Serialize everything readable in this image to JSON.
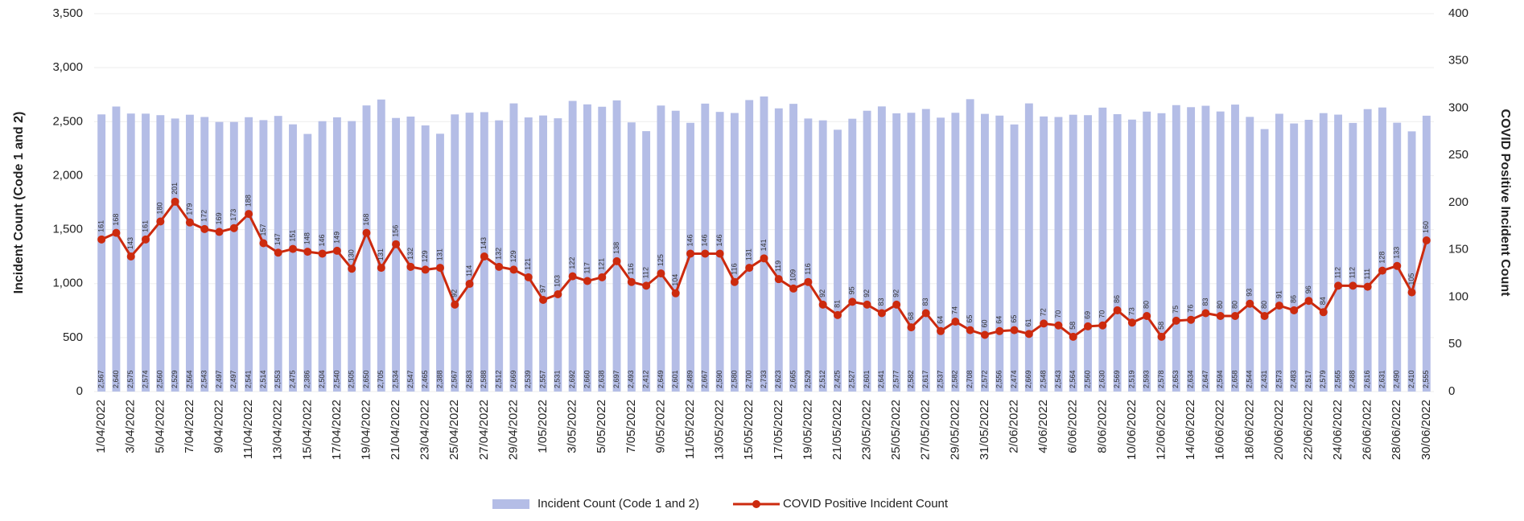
{
  "chart_data": {
    "type": "bar-line",
    "categories": [
      "1/04/2022",
      null,
      "3/04/2022",
      null,
      "5/04/2022",
      null,
      "7/04/2022",
      null,
      "9/04/2022",
      null,
      "11/04/2022",
      null,
      "13/04/2022",
      null,
      "15/04/2022",
      null,
      "17/04/2022",
      null,
      "19/04/2022",
      null,
      "21/04/2022",
      null,
      "23/04/2022",
      null,
      "25/04/2022",
      null,
      "27/04/2022",
      null,
      "29/04/2022",
      null,
      "1/05/2022",
      null,
      "3/05/2022",
      null,
      "5/05/2022",
      null,
      "7/05/2022",
      null,
      "9/05/2022",
      null,
      "11/05/2022",
      null,
      "13/05/2022",
      null,
      "15/05/2022",
      null,
      "17/05/2022",
      null,
      "19/05/2022",
      null,
      "21/05/2022",
      null,
      "23/05/2022",
      null,
      "25/05/2022",
      null,
      "27/05/2022",
      null,
      "29/05/2022",
      null,
      "31/05/2022",
      null,
      "2/06/2022",
      null,
      "4/06/2022",
      null,
      "6/06/2022",
      null,
      "8/06/2022",
      null,
      "10/06/2022",
      null,
      "12/06/2022",
      null,
      "14/06/2022",
      null,
      "16/06/2022",
      null,
      "18/06/2022",
      null,
      "20/06/2022",
      null,
      "22/06/2022",
      null,
      "24/06/2022",
      null,
      "26/06/2022",
      null,
      "28/06/2022",
      null,
      "30/06/2022"
    ],
    "series": [
      {
        "name": "Incident Count (Code 1 and 2)",
        "type": "bar",
        "color": "#b4bde6",
        "values": [
          2567,
          2640,
          2575,
          2574,
          2560,
          2529,
          2564,
          2543,
          2497,
          2497,
          2541,
          2514,
          2553,
          2475,
          2386,
          2504,
          2540,
          2505,
          2650,
          2705,
          2534,
          2547,
          2465,
          2388,
          2567,
          2583,
          2588,
          2512,
          2669,
          2539,
          2557,
          2531,
          2692,
          2660,
          2638,
          2697,
          2493,
          2412,
          2649,
          2601,
          2489,
          2667,
          2590,
          2580,
          2700,
          2733,
          2623,
          2665,
          2529,
          2512,
          2425,
          2527,
          2601,
          2641,
          2577,
          2582,
          2617,
          2537,
          2582,
          2708,
          2572,
          2556,
          2474,
          2669,
          2548,
          2543,
          2564,
          2560,
          2630,
          2569,
          2519,
          2593,
          2578,
          2653,
          2634,
          2647,
          2594,
          2658,
          2544,
          2431,
          2573,
          2483,
          2517,
          2579,
          2565,
          2488,
          2616,
          2631,
          2490,
          2410,
          2555
        ],
        "value_labels": [
          "2,567",
          "2,640",
          "2,575",
          "2,574",
          "2,560",
          "2,529",
          "2,564",
          "2,543",
          "2,497",
          "2,497",
          "2,541",
          "2,514",
          "2,553",
          "2,475",
          "2,386",
          "2,504",
          "2,540",
          "2,505",
          "2,650",
          "2,705",
          "2,534",
          "2,547",
          "2,465",
          "2,388",
          "2,567",
          "2,583",
          "2,588",
          "2,512",
          "2,669",
          "2,539",
          "2,557",
          "2,531",
          "2,692",
          "2,660",
          "2,638",
          "2,697",
          "2,493",
          "2,412",
          "2,649",
          "2,601",
          "2,489",
          "2,667",
          "2,590",
          "2,580",
          "2,700",
          "2,733",
          "2,623",
          "2,665",
          "2,529",
          "2,512",
          "2,425",
          "2,527",
          "2,601",
          "2,641",
          "2,577",
          "2,582",
          "2,617",
          "2,537",
          "2,582",
          "2,708",
          "2,572",
          "2,556",
          "2,474",
          "2,669",
          "2,548",
          "2,543",
          "2,564",
          "2,560",
          "2,630",
          "2,569",
          "2,519",
          "2,593",
          "2,578",
          "2,653",
          "2,634",
          "2,647",
          "2,594",
          "2,658",
          "2,544",
          "2,431",
          "2,573",
          "2,483",
          "2,517",
          "2,579",
          "2,565",
          "2,488",
          "2,616",
          "2,631",
          "2,490",
          "2,410",
          "2,555"
        ]
      },
      {
        "name": "COVID Positive Incident Count",
        "type": "line",
        "axis": "y2",
        "color": "#cc2a0e",
        "values": [
          161,
          168,
          143,
          161,
          180,
          201,
          179,
          172,
          169,
          173,
          188,
          157,
          147,
          151,
          148,
          146,
          149,
          130,
          168,
          131,
          156,
          132,
          129,
          131,
          92,
          114,
          143,
          132,
          129,
          121,
          97,
          103,
          122,
          117,
          121,
          138,
          116,
          112,
          125,
          104,
          146,
          146,
          146,
          116,
          131,
          141,
          119,
          109,
          116,
          92,
          81,
          95,
          92,
          83,
          92,
          68,
          83,
          64,
          74,
          65,
          60,
          64,
          65,
          61,
          72,
          70,
          58,
          69,
          70,
          86,
          73,
          80,
          58,
          75,
          76,
          83,
          80,
          80,
          93,
          80,
          91,
          86,
          96,
          84,
          112,
          112,
          111,
          128,
          133,
          105,
          160
        ]
      }
    ],
    "y_label": "Incident Count (Code 1 and 2)",
    "y2_label": "COVID Positive Incident Count",
    "ylim": [
      0,
      3500
    ],
    "yticks": [
      0,
      500,
      {
        "value": 1000,
        "label": "1,000"
      },
      {
        "value": 1500,
        "label": "1,500"
      },
      {
        "value": 2000,
        "label": "2,000"
      },
      {
        "value": 2500,
        "label": "2,500"
      },
      {
        "value": 3000,
        "label": "3,000"
      },
      {
        "value": 3500,
        "label": "3,500"
      }
    ],
    "y2lim": [
      0,
      400
    ],
    "y2ticks": [
      0,
      50,
      100,
      150,
      200,
      250,
      300,
      350,
      400
    ],
    "grid": true,
    "legend": "bottom"
  }
}
